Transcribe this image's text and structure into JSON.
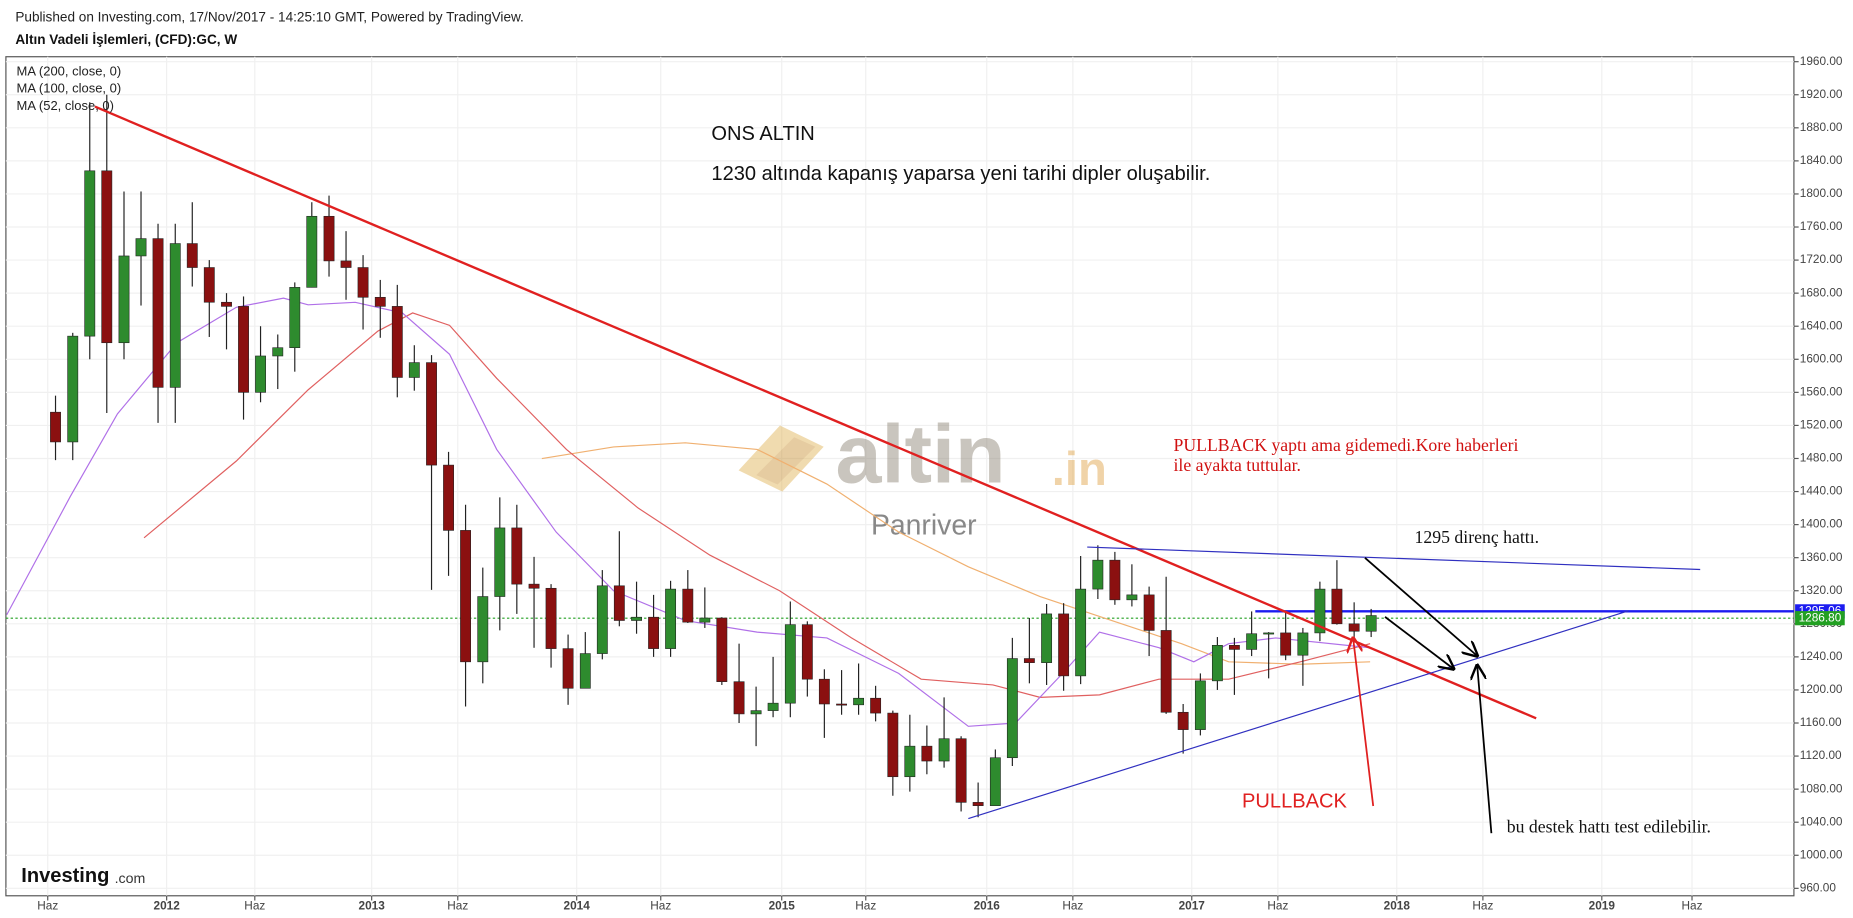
{
  "chart_data": {
    "type": "candlestick",
    "header": "Published on Investing.com, 17/Nov/2017 - 14:25:10 GMT, Powered by TradingView.",
    "title": "Altın Vadeli İşlemleri, (CFD):GC, W",
    "up_color": "#2e8b2e",
    "down_color": "#8b1010",
    "xlim": [
      2011.216,
      2019.937
    ],
    "ylim": [
      951,
      1966
    ],
    "grid": true,
    "xticks": [
      {
        "value": 2011.42,
        "label": "Haz"
      },
      2012,
      {
        "value": 2012.43,
        "label": "Haz"
      },
      2013,
      {
        "value": 2013.42,
        "label": "Haz"
      },
      2014,
      {
        "value": 2014.41,
        "label": "Haz"
      },
      2015,
      {
        "value": 2015.41,
        "label": "Haz"
      },
      2016,
      {
        "value": 2016.42,
        "label": "Haz"
      },
      2017,
      {
        "value": 2017.42,
        "label": "Haz"
      },
      2018,
      {
        "value": 2018.42,
        "label": "Haz"
      },
      2019,
      {
        "value": 2019.44,
        "label": "Haz"
      }
    ],
    "yticks": [
      {
        "value": 960,
        "label": "960.00"
      },
      {
        "value": 1000,
        "label": "1000.00"
      },
      {
        "value": 1040,
        "label": "1040.00"
      },
      {
        "value": 1080,
        "label": "1080.00"
      },
      {
        "value": 1120,
        "label": "1120.00"
      },
      {
        "value": 1160,
        "label": "1160.00"
      },
      {
        "value": 1200,
        "label": "1200.00"
      },
      {
        "value": 1240,
        "label": "1240.00"
      },
      {
        "value": 1280,
        "label": "1280.00"
      },
      {
        "value": 1320,
        "label": "1320.00"
      },
      {
        "value": 1360,
        "label": "1360.00"
      },
      {
        "value": 1400,
        "label": "1400.00"
      },
      {
        "value": 1440,
        "label": "1440.00"
      },
      {
        "value": 1480,
        "label": "1480.00"
      },
      {
        "value": 1520,
        "label": "1520.00"
      },
      {
        "value": 1560,
        "label": "1560.00"
      },
      {
        "value": 1600,
        "label": "1600.00"
      },
      {
        "value": 1640,
        "label": "1640.00"
      },
      {
        "value": 1680,
        "label": "1680.00"
      },
      {
        "value": 1720,
        "label": "1720.00"
      },
      {
        "value": 1760,
        "label": "1760.00"
      },
      {
        "value": 1800,
        "label": "1800.00"
      },
      {
        "value": 1840,
        "label": "1840.00"
      },
      {
        "value": 1880,
        "label": "1880.00"
      },
      {
        "value": 1920,
        "label": "1920.00"
      },
      {
        "value": 1960,
        "label": "1960.00"
      }
    ],
    "candles": [
      {
        "x": 2011.458,
        "open": 1536,
        "high": 1556,
        "low": 1478,
        "close": 1500
      },
      {
        "x": 2011.542,
        "open": 1500,
        "high": 1632,
        "low": 1478,
        "close": 1628
      },
      {
        "x": 2011.625,
        "open": 1628,
        "high": 1911,
        "low": 1600,
        "close": 1828
      },
      {
        "x": 2011.708,
        "open": 1828,
        "high": 1920,
        "low": 1535,
        "close": 1620
      },
      {
        "x": 2011.792,
        "open": 1620,
        "high": 1803,
        "low": 1600,
        "close": 1725
      },
      {
        "x": 2011.875,
        "open": 1725,
        "high": 1803,
        "low": 1665,
        "close": 1746
      },
      {
        "x": 2011.958,
        "open": 1746,
        "high": 1764,
        "low": 1523,
        "close": 1566
      },
      {
        "x": 2012.042,
        "open": 1566,
        "high": 1764,
        "low": 1523,
        "close": 1740
      },
      {
        "x": 2012.125,
        "open": 1740,
        "high": 1790,
        "low": 1688,
        "close": 1711
      },
      {
        "x": 2012.208,
        "open": 1711,
        "high": 1720,
        "low": 1627,
        "close": 1669
      },
      {
        "x": 2012.292,
        "open": 1669,
        "high": 1680,
        "low": 1612,
        "close": 1664
      },
      {
        "x": 2012.375,
        "open": 1664,
        "high": 1676,
        "low": 1527,
        "close": 1560
      },
      {
        "x": 2012.458,
        "open": 1560,
        "high": 1640,
        "low": 1548,
        "close": 1604
      },
      {
        "x": 2012.542,
        "open": 1604,
        "high": 1630,
        "low": 1564,
        "close": 1614
      },
      {
        "x": 2012.625,
        "open": 1614,
        "high": 1693,
        "low": 1585,
        "close": 1687
      },
      {
        "x": 2012.708,
        "open": 1687,
        "high": 1790,
        "low": 1687,
        "close": 1773
      },
      {
        "x": 2012.792,
        "open": 1773,
        "high": 1798,
        "low": 1700,
        "close": 1719
      },
      {
        "x": 2012.875,
        "open": 1719,
        "high": 1755,
        "low": 1672,
        "close": 1711
      },
      {
        "x": 2012.958,
        "open": 1711,
        "high": 1726,
        "low": 1636,
        "close": 1675
      },
      {
        "x": 2013.042,
        "open": 1675,
        "high": 1696,
        "low": 1626,
        "close": 1664
      },
      {
        "x": 2013.125,
        "open": 1664,
        "high": 1690,
        "low": 1554,
        "close": 1578
      },
      {
        "x": 2013.208,
        "open": 1578,
        "high": 1617,
        "low": 1562,
        "close": 1596
      },
      {
        "x": 2013.292,
        "open": 1596,
        "high": 1605,
        "low": 1321,
        "close": 1472
      },
      {
        "x": 2013.375,
        "open": 1472,
        "high": 1488,
        "low": 1338,
        "close": 1393
      },
      {
        "x": 2013.458,
        "open": 1393,
        "high": 1424,
        "low": 1180,
        "close": 1234
      },
      {
        "x": 2013.542,
        "open": 1234,
        "high": 1348,
        "low": 1208,
        "close": 1313
      },
      {
        "x": 2013.625,
        "open": 1313,
        "high": 1433,
        "low": 1272,
        "close": 1396
      },
      {
        "x": 2013.708,
        "open": 1396,
        "high": 1424,
        "low": 1292,
        "close": 1328
      },
      {
        "x": 2013.792,
        "open": 1328,
        "high": 1361,
        "low": 1251,
        "close": 1323
      },
      {
        "x": 2013.875,
        "open": 1323,
        "high": 1328,
        "low": 1227,
        "close": 1250
      },
      {
        "x": 2013.958,
        "open": 1250,
        "high": 1267,
        "low": 1182,
        "close": 1202
      },
      {
        "x": 2014.042,
        "open": 1202,
        "high": 1270,
        "low": 1202,
        "close": 1244
      },
      {
        "x": 2014.125,
        "open": 1244,
        "high": 1345,
        "low": 1237,
        "close": 1326
      },
      {
        "x": 2014.208,
        "open": 1326,
        "high": 1392,
        "low": 1277,
        "close": 1284
      },
      {
        "x": 2014.292,
        "open": 1284,
        "high": 1331,
        "low": 1268,
        "close": 1288
      },
      {
        "x": 2014.375,
        "open": 1288,
        "high": 1315,
        "low": 1240,
        "close": 1250
      },
      {
        "x": 2014.458,
        "open": 1250,
        "high": 1332,
        "low": 1240,
        "close": 1322
      },
      {
        "x": 2014.542,
        "open": 1322,
        "high": 1345,
        "low": 1281,
        "close": 1282
      },
      {
        "x": 2014.625,
        "open": 1282,
        "high": 1324,
        "low": 1275,
        "close": 1287
      },
      {
        "x": 2014.708,
        "open": 1287,
        "high": 1288,
        "low": 1206,
        "close": 1210
      },
      {
        "x": 2014.792,
        "open": 1210,
        "high": 1256,
        "low": 1160,
        "close": 1171
      },
      {
        "x": 2014.875,
        "open": 1171,
        "high": 1204,
        "low": 1132,
        "close": 1175
      },
      {
        "x": 2014.958,
        "open": 1175,
        "high": 1240,
        "low": 1167,
        "close": 1184
      },
      {
        "x": 2015.042,
        "open": 1184,
        "high": 1307,
        "low": 1167,
        "close": 1279
      },
      {
        "x": 2015.125,
        "open": 1279,
        "high": 1283,
        "low": 1192,
        "close": 1213
      },
      {
        "x": 2015.208,
        "open": 1213,
        "high": 1225,
        "low": 1142,
        "close": 1183
      },
      {
        "x": 2015.292,
        "open": 1183,
        "high": 1224,
        "low": 1170,
        "close": 1182
      },
      {
        "x": 2015.375,
        "open": 1182,
        "high": 1232,
        "low": 1170,
        "close": 1190
      },
      {
        "x": 2015.458,
        "open": 1190,
        "high": 1205,
        "low": 1162,
        "close": 1172
      },
      {
        "x": 2015.542,
        "open": 1172,
        "high": 1175,
        "low": 1072,
        "close": 1095
      },
      {
        "x": 2015.625,
        "open": 1095,
        "high": 1170,
        "low": 1077,
        "close": 1132
      },
      {
        "x": 2015.708,
        "open": 1132,
        "high": 1157,
        "low": 1098,
        "close": 1114
      },
      {
        "x": 2015.792,
        "open": 1114,
        "high": 1191,
        "low": 1106,
        "close": 1141
      },
      {
        "x": 2015.875,
        "open": 1141,
        "high": 1144,
        "low": 1053,
        "close": 1064
      },
      {
        "x": 2015.958,
        "open": 1064,
        "high": 1088,
        "low": 1046,
        "close": 1060
      },
      {
        "x": 2016.042,
        "open": 1060,
        "high": 1128,
        "low": 1061,
        "close": 1118
      },
      {
        "x": 2016.125,
        "open": 1118,
        "high": 1263,
        "low": 1108,
        "close": 1238
      },
      {
        "x": 2016.208,
        "open": 1238,
        "high": 1287,
        "low": 1208,
        "close": 1233
      },
      {
        "x": 2016.292,
        "open": 1233,
        "high": 1304,
        "low": 1206,
        "close": 1292
      },
      {
        "x": 2016.375,
        "open": 1292,
        "high": 1305,
        "low": 1199,
        "close": 1217
      },
      {
        "x": 2016.458,
        "open": 1217,
        "high": 1362,
        "low": 1207,
        "close": 1322
      },
      {
        "x": 2016.542,
        "open": 1322,
        "high": 1375,
        "low": 1310,
        "close": 1357
      },
      {
        "x": 2016.625,
        "open": 1357,
        "high": 1367,
        "low": 1303,
        "close": 1309
      },
      {
        "x": 2016.708,
        "open": 1309,
        "high": 1352,
        "low": 1301,
        "close": 1315
      },
      {
        "x": 2016.792,
        "open": 1315,
        "high": 1325,
        "low": 1241,
        "close": 1272
      },
      {
        "x": 2016.875,
        "open": 1272,
        "high": 1337,
        "low": 1171,
        "close": 1173
      },
      {
        "x": 2016.958,
        "open": 1173,
        "high": 1183,
        "low": 1123,
        "close": 1152
      },
      {
        "x": 2017.042,
        "open": 1152,
        "high": 1220,
        "low": 1145,
        "close": 1211
      },
      {
        "x": 2017.125,
        "open": 1211,
        "high": 1264,
        "low": 1200,
        "close": 1254
      },
      {
        "x": 2017.208,
        "open": 1254,
        "high": 1263,
        "low": 1194,
        "close": 1249
      },
      {
        "x": 2017.292,
        "open": 1249,
        "high": 1295,
        "low": 1241,
        "close": 1268
      },
      {
        "x": 2017.375,
        "open": 1268,
        "high": 1270,
        "low": 1214,
        "close": 1269
      },
      {
        "x": 2017.458,
        "open": 1269,
        "high": 1296,
        "low": 1236,
        "close": 1242
      },
      {
        "x": 2017.542,
        "open": 1242,
        "high": 1275,
        "low": 1205,
        "close": 1269
      },
      {
        "x": 2017.625,
        "open": 1269,
        "high": 1331,
        "low": 1259,
        "close": 1322
      },
      {
        "x": 2017.708,
        "open": 1322,
        "high": 1357,
        "low": 1279,
        "close": 1280
      },
      {
        "x": 2017.792,
        "open": 1280,
        "high": 1306,
        "low": 1260,
        "close": 1271
      },
      {
        "x": 2017.875,
        "open": 1271,
        "high": 1298,
        "low": 1264,
        "close": 1290
      }
    ],
    "series": [
      {
        "name": "MA (200, close, 0)",
        "color": "#f0b070",
        "x": [
          2013.83,
          2014.18,
          2014.53,
          2014.88,
          2015.22,
          2015.57,
          2015.91,
          2016.26,
          2016.61,
          2016.95,
          2017.18,
          2017.53,
          2017.87
        ],
        "values": [
          1480,
          1494,
          1499,
          1491,
          1449,
          1391,
          1349,
          1313,
          1284,
          1256,
          1234,
          1231,
          1234
        ]
      },
      {
        "name": "MA (100, close, 0)",
        "color": "#e06060",
        "x": [
          2011.89,
          2012.34,
          2012.69,
          2013.03,
          2013.2,
          2013.38,
          2013.61,
          2013.95,
          2014.3,
          2014.65,
          2014.99,
          2015.34,
          2015.68,
          2016.03,
          2016.26,
          2016.55,
          2016.84,
          2017.18,
          2017.53,
          2017.87
        ],
        "values": [
          1384,
          1477,
          1563,
          1634,
          1656,
          1641,
          1577,
          1491,
          1420,
          1363,
          1320,
          1263,
          1213,
          1206,
          1191,
          1194,
          1213,
          1213,
          1234,
          1256
        ]
      },
      {
        "name": "MA (52, close, 0)",
        "color": "#b070e8",
        "x": [
          2011.22,
          2011.53,
          2011.76,
          2012.05,
          2012.34,
          2012.57,
          2012.69,
          2012.92,
          2013.15,
          2013.38,
          2013.61,
          2013.9,
          2014.18,
          2014.53,
          2014.88,
          2015.22,
          2015.57,
          2015.91,
          2016.14,
          2016.37,
          2016.55,
          2016.84,
          2017.01,
          2017.18,
          2017.41,
          2017.87
        ],
        "values": [
          1291,
          1434,
          1534,
          1620,
          1663,
          1674,
          1666,
          1669,
          1656,
          1606,
          1491,
          1391,
          1320,
          1284,
          1270,
          1263,
          1220,
          1156,
          1160,
          1220,
          1270,
          1251,
          1234,
          1256,
          1263,
          1251
        ]
      }
    ],
    "trendlines": [
      {
        "color": "#e02020",
        "x": [
          2011.65,
          2018.68
        ],
        "values": [
          1905.7,
          1165.7
        ]
      },
      {
        "color": "#3030c0",
        "x": [
          2016.49,
          2019.48
        ],
        "values": [
          1372.9,
          1345.7
        ]
      },
      {
        "color": "#3030c0",
        "x": [
          2015.91,
          2019.13
        ],
        "values": [
          1044.3,
          1295.7
        ]
      }
    ],
    "levels": [
      {
        "value": 1295.06,
        "label": "1295.06",
        "color": "#1c1cf0",
        "x_start": 2017.31
      },
      {
        "value": 1286.8,
        "label": "1286.80",
        "color": "#22a022"
      }
    ],
    "annotations": {
      "heading": "ONS ALTIN",
      "subheading": "1230 altında kapanış yaparsa yeni tarihi dipler oluşabilir.",
      "pullback_note": [
        "PULLBACK yaptı ama gidemedi.Kore haberleri",
        "ile ayakta tuttular."
      ],
      "resistance": "1295 direnç hattı.",
      "pullback": "PULLBACK",
      "support": "bu destek hattı test edilebilir."
    },
    "watermark": {
      "brand": "altin",
      "suffix": ".in",
      "author": "Panriver"
    },
    "logo": {
      "brand": "Investing",
      "suffix": ".com"
    }
  }
}
